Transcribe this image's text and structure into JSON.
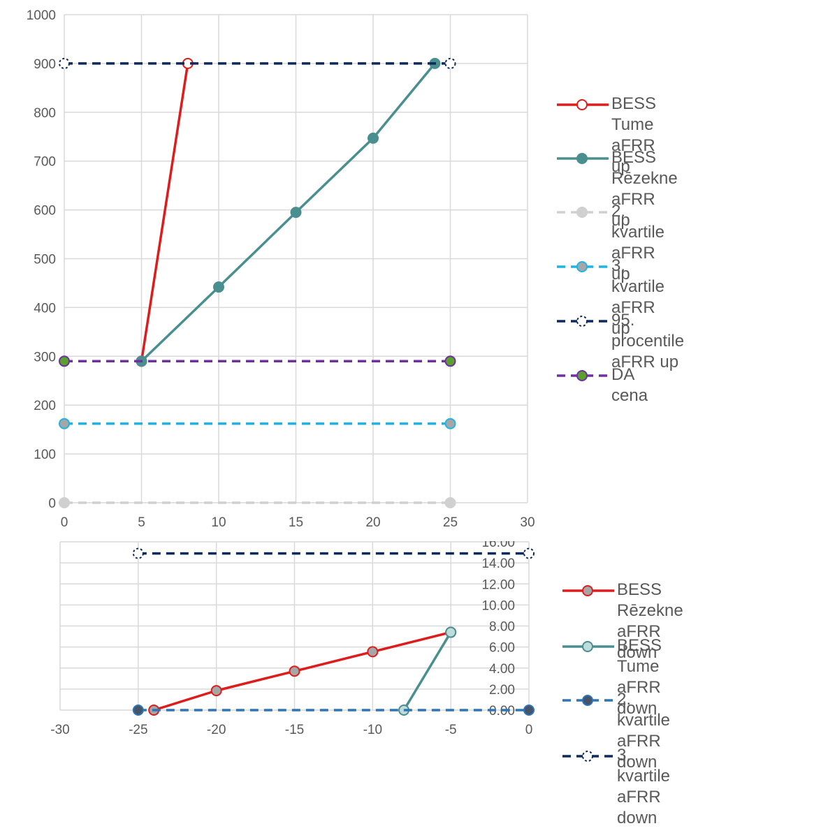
{
  "chart_data": [
    {
      "type": "line",
      "xlim": [
        0,
        30
      ],
      "ylim": [
        0,
        1000
      ],
      "x_ticks": [
        "0",
        "5",
        "10",
        "15",
        "20",
        "25",
        "30"
      ],
      "y_ticks": [
        "0",
        "100",
        "200",
        "300",
        "400",
        "500",
        "600",
        "700",
        "800",
        "900",
        "1000"
      ],
      "grid": true,
      "legend_position": "right",
      "series": [
        {
          "name": "BESS Tume aFRR up",
          "color": "#dd1c1c",
          "dash": false,
          "marker": "hollow",
          "x": [
            5,
            8
          ],
          "y": [
            290,
            900
          ]
        },
        {
          "name": "BESS Rēzekne aFRR up",
          "color": "#4a8f90",
          "dash": false,
          "marker": "filled",
          "x": [
            5,
            10,
            15,
            20,
            24
          ],
          "y": [
            290,
            442,
            595,
            747,
            900
          ]
        },
        {
          "name": "2. kvartile aFRR up",
          "color": "#d0d0d0",
          "dash": true,
          "marker": "filled",
          "x": [
            0,
            25
          ],
          "y": [
            0,
            0
          ]
        },
        {
          "name": "3. kvartile aFRR up",
          "color": "#1fb4e6",
          "dash": true,
          "marker": "grey",
          "x": [
            0,
            25
          ],
          "y": [
            162,
            162
          ]
        },
        {
          "name": "95. procentile aFRR up",
          "color": "#0d2a5c",
          "dash": true,
          "marker": "hollow",
          "x": [
            0,
            25
          ],
          "y": [
            900,
            900
          ]
        },
        {
          "name": "DA cena",
          "color": "#7030a0",
          "dash": true,
          "marker": "green",
          "x": [
            0,
            25
          ],
          "y": [
            290,
            290
          ]
        }
      ]
    },
    {
      "type": "line",
      "xlim": [
        -30,
        0
      ],
      "ylim": [
        0,
        16
      ],
      "x_ticks": [
        "-30",
        "-25",
        "-20",
        "-15",
        "-10",
        "-5",
        "0"
      ],
      "y_ticks": [
        "0.00",
        "2.00",
        "4.00",
        "6.00",
        "8.00",
        "10.00",
        "12.00",
        "14.00",
        "16.00"
      ],
      "grid": true,
      "legend_position": "right",
      "series": [
        {
          "name": "BESS Rēzekne aFRR down",
          "color": "#dd1c1c",
          "dash": false,
          "marker": "grey",
          "x": [
            -24,
            -20,
            -15,
            -10,
            -5
          ],
          "y": [
            0,
            1.85,
            3.7,
            5.55,
            7.4
          ]
        },
        {
          "name": "BESS Tume aFRR down",
          "color": "#4a8f90",
          "dash": false,
          "marker": "light",
          "x": [
            -8,
            -5
          ],
          "y": [
            0,
            7.4
          ]
        },
        {
          "name": "2. kvartile aFRR down",
          "color": "#2e75b6",
          "dash": true,
          "marker": "dark",
          "x": [
            -25,
            0
          ],
          "y": [
            0,
            0
          ]
        },
        {
          "name": "3. kvartile aFRR down",
          "color": "#0d2a5c",
          "dash": true,
          "marker": "hollow",
          "x": [
            -25,
            0
          ],
          "y": [
            14.9,
            14.9
          ]
        }
      ]
    }
  ],
  "legend_top": {
    "items": [
      {
        "line1": "BESS Tume aFRR up",
        "line2": ""
      },
      {
        "line1": "BESS Rēzekne aFRR",
        "line2": "up"
      },
      {
        "line1": "2. kvartile aFRR up",
        "line2": ""
      },
      {
        "line1": "3. kvartile aFRR up",
        "line2": ""
      },
      {
        "line1": "95. procentile aFRR up",
        "line2": ""
      },
      {
        "line1": "DA cena",
        "line2": ""
      }
    ]
  },
  "legend_bottom": {
    "items": [
      {
        "line1": "BESS Rēzekne aFRR",
        "line2": "down"
      },
      {
        "line1": "BESS Tume aFRR",
        "line2": "down"
      },
      {
        "line1": "2. kvartile aFRR down",
        "line2": ""
      },
      {
        "line1": "3. kvartile aFRR down",
        "line2": ""
      }
    ]
  }
}
